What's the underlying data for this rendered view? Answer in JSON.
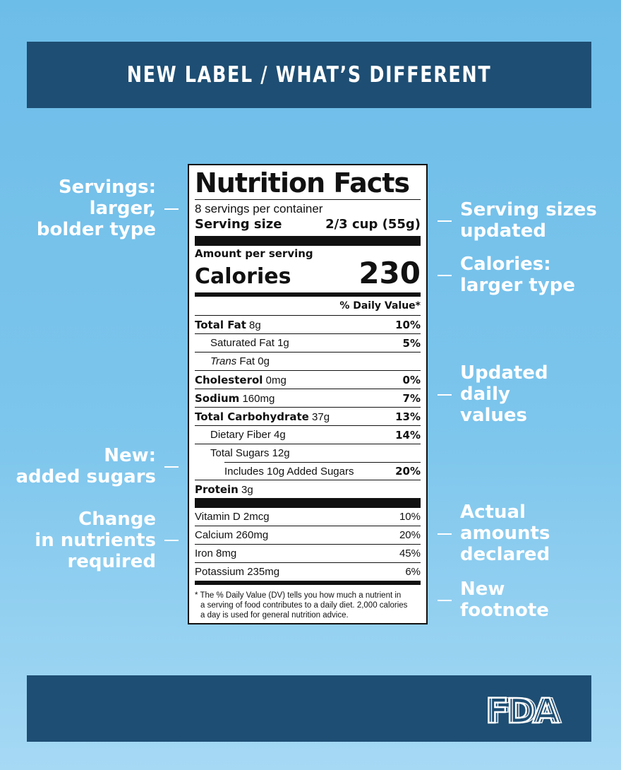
{
  "header": {
    "title": "NEW LABEL / WHAT’S DIFFERENT"
  },
  "footer": {
    "logo_text": "FDA"
  },
  "left_callouts": {
    "servings": [
      "Servings:",
      "larger,",
      "bolder type"
    ],
    "added_sugars": [
      "New:",
      "added sugars"
    ],
    "nutrients": [
      "Change",
      "in nutrients",
      "required"
    ]
  },
  "right_callouts": {
    "serving_sizes": [
      "Serving sizes",
      "updated"
    ],
    "calories": [
      "Calories:",
      "larger type"
    ],
    "daily_values": [
      "Updated",
      "daily",
      "values"
    ],
    "actual_amounts": [
      "Actual",
      "amounts",
      "declared"
    ],
    "footnote": [
      "New",
      "footnote"
    ]
  },
  "label": {
    "title": "Nutrition Facts",
    "servings_per_container": "8 servings per container",
    "serving_size_label": "Serving size",
    "serving_size_value": "2/3 cup (55g)",
    "amount_per_serving": "Amount per serving",
    "calories_label": "Calories",
    "calories_value": "230",
    "dv_header": "% Daily Value*",
    "nutrients": [
      {
        "name": "Total Fat",
        "amount": "8g",
        "dv": "10%"
      },
      {
        "name": "Saturated Fat",
        "amount": "1g",
        "dv": "5%"
      },
      {
        "name": "Trans",
        "suffix": "Fat 0g",
        "dv": ""
      },
      {
        "name": "Cholesterol",
        "amount": "0mg",
        "dv": "0%"
      },
      {
        "name": "Sodium",
        "amount": "160mg",
        "dv": "7%"
      },
      {
        "name": "Total Carbohydrate",
        "amount": "37g",
        "dv": "13%"
      },
      {
        "name": "Dietary Fiber",
        "amount": "4g",
        "dv": "14%"
      },
      {
        "name": "Total Sugars",
        "amount": "12g",
        "dv": ""
      },
      {
        "name": "Includes 10g Added Sugars",
        "amount": "",
        "dv": "20%"
      },
      {
        "name": "Protein",
        "amount": "3g",
        "dv": ""
      }
    ],
    "vitamins": [
      {
        "name": "Vitamin D 2mcg",
        "dv": "10%"
      },
      {
        "name": "Calcium 260mg",
        "dv": "20%"
      },
      {
        "name": "Iron 8mg",
        "dv": "45%"
      },
      {
        "name": "Potassium 235mg",
        "dv": "6%"
      }
    ],
    "footnote": [
      "* The % Daily Value (DV) tells you how much a nutrient in",
      "a serving of food contributes to a daily diet. 2,000 calories",
      "a day is used for general nutrition advice."
    ]
  }
}
